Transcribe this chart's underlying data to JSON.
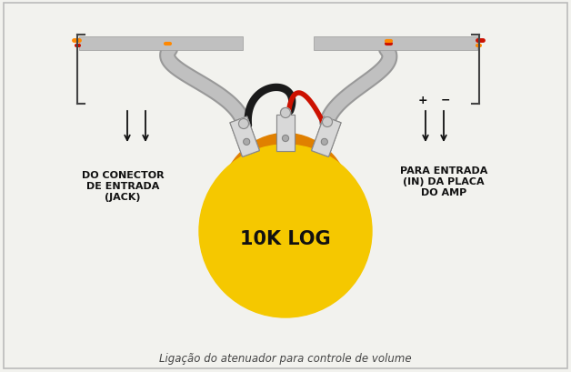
{
  "bg_color": "#f2f2ee",
  "border_color": "#bbbbbb",
  "title_text": "Ligação do atenuador para controle de volume",
  "title_fontsize": 8.5,
  "left_label": "DO CONECTOR\nDE ENTRADA\n(JACK)",
  "right_label": "PARA ENTRADA\n(IN) DA PLACA\nDO AMP",
  "pot_label": "10K LOG",
  "pot_label_fontsize": 15,
  "pot_body_color": "#f5c800",
  "pot_back_color": "#e08000",
  "terminal_color": "#d8d8d8",
  "terminal_edge": "#888888",
  "wire_gray": "#c0c0c0",
  "wire_gray_dark": "#999999",
  "wire_black": "#1a1a1a",
  "wire_red": "#cc1100",
  "wire_orange": "#ff8800",
  "text_color": "#111111",
  "arrow_color": "#111111",
  "bracket_color": "#444444",
  "plus_minus_color": "#111111"
}
